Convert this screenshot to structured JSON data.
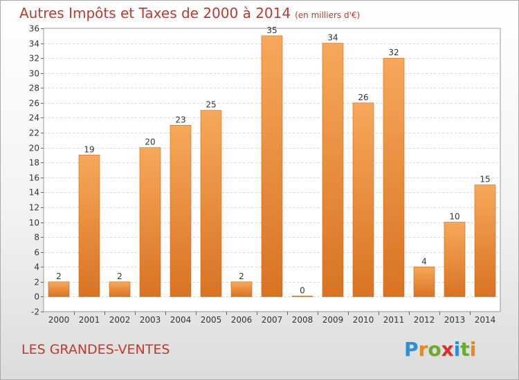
{
  "header": {
    "title": "Autres Impôts et Taxes de 2000 à 2014",
    "unit": "(en milliers d'€)"
  },
  "footer": {
    "commune": "LES GRANDES-VENTES",
    "logo_letters": [
      "P",
      "r",
      "o",
      "x",
      "i",
      "t",
      "i"
    ],
    "logo_colors": [
      "#2a8fd6",
      "#e8891b",
      "#6cab2f",
      "#d6302b",
      "#2a8fd6",
      "#6cab2f",
      "#e8891b"
    ]
  },
  "colors": {
    "bar_top": "#f7a85a",
    "bar_bottom": "#d97322",
    "title": "#c0392b"
  },
  "chart_data": {
    "type": "bar",
    "title": "Autres Impôts et Taxes de 2000 à 2014",
    "subtitle": "(en milliers d'€)",
    "xlabel": "",
    "ylabel": "",
    "categories": [
      "2000",
      "2001",
      "2002",
      "2003",
      "2004",
      "2005",
      "2006",
      "2007",
      "2008",
      "2009",
      "2010",
      "2011",
      "2012",
      "2013",
      "2014"
    ],
    "values": [
      2,
      19,
      2,
      20,
      23,
      25,
      2,
      35,
      0,
      34,
      26,
      32,
      4,
      10,
      15
    ],
    "data_labels": [
      "2",
      "19",
      "2",
      "20",
      "23",
      "25",
      "2",
      "35",
      "0",
      "34",
      "26",
      "32",
      "4",
      "10",
      "15"
    ],
    "ylim": [
      -2,
      36
    ],
    "yticks": [
      -2,
      0,
      2,
      4,
      6,
      8,
      10,
      12,
      14,
      16,
      18,
      20,
      22,
      24,
      26,
      28,
      30,
      32,
      34,
      36
    ],
    "grid": true,
    "legend": "none"
  }
}
